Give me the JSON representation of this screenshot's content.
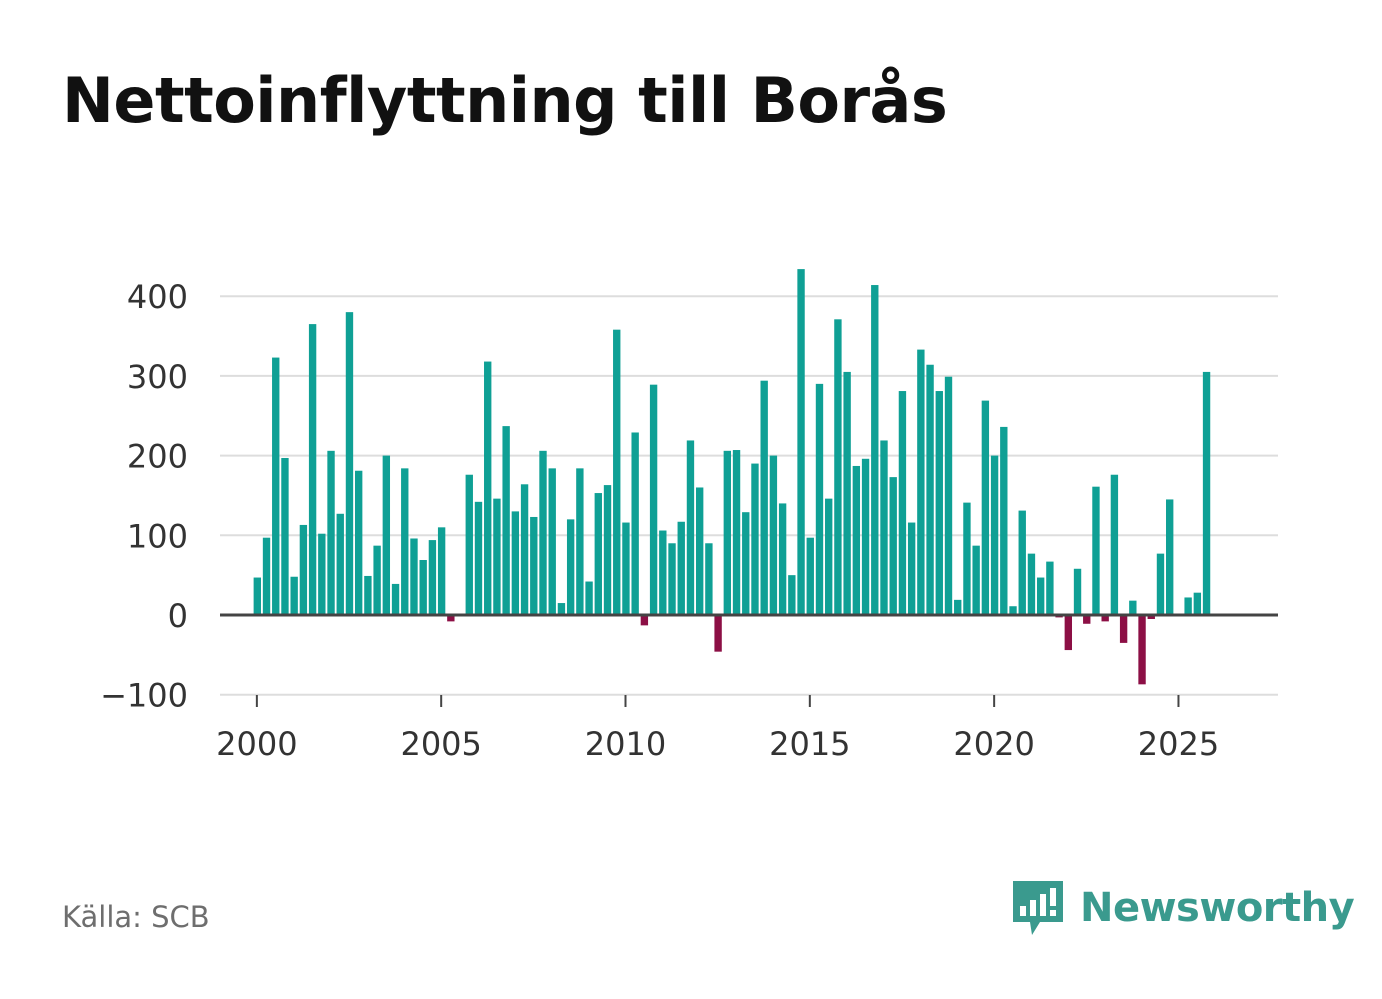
{
  "title": "Nettoinflyttning till Borås",
  "source": "Källa: SCB",
  "brand": {
    "name": "Newsworthy",
    "icon": "newsworthy-logo-icon"
  },
  "colors": {
    "positive": "#0fa095",
    "negative": "#8c0f45",
    "grid": "#dddddd",
    "axis": "#444444",
    "text": "#333333",
    "brand": "#3a9a8e"
  },
  "chart_data": {
    "type": "bar",
    "title": "Nettoinflyttning till Borås",
    "xlabel": "",
    "ylabel": "",
    "ylim": [
      -110,
      440
    ],
    "xlim": [
      1999.0,
      2027.7
    ],
    "yticks": [
      -100,
      0,
      100,
      200,
      300,
      400
    ],
    "ytick_labels": [
      "−100",
      "0",
      "100",
      "200",
      "300",
      "400"
    ],
    "xticks": [
      2000,
      2005,
      2010,
      2015,
      2020,
      2025
    ],
    "xtick_labels": [
      "2000",
      "2005",
      "2010",
      "2015",
      "2020",
      "2025"
    ],
    "grid": true,
    "start": 2000.0,
    "step": 0.25,
    "values": [
      47,
      97,
      323,
      197,
      48,
      113,
      365,
      102,
      206,
      127,
      380,
      181,
      49,
      87,
      200,
      39,
      184,
      96,
      69,
      94,
      110,
      -8,
      0,
      176,
      142,
      318,
      146,
      237,
      130,
      164,
      123,
      206,
      184,
      15,
      120,
      184,
      42,
      153,
      163,
      358,
      116,
      229,
      -13,
      289,
      106,
      90,
      117,
      219,
      160,
      90,
      -46,
      206,
      207,
      129,
      190,
      294,
      200,
      140,
      50,
      434,
      97,
      290,
      146,
      371,
      305,
      187,
      196,
      414,
      219,
      173,
      281,
      116,
      333,
      314,
      281,
      299,
      19,
      141,
      87,
      269,
      200,
      236,
      11,
      131,
      77,
      47,
      67,
      -3,
      -44,
      58,
      -11,
      161,
      -8,
      176,
      -35,
      18,
      -87,
      -5,
      77,
      145,
      0,
      22,
      28,
      305
    ]
  }
}
